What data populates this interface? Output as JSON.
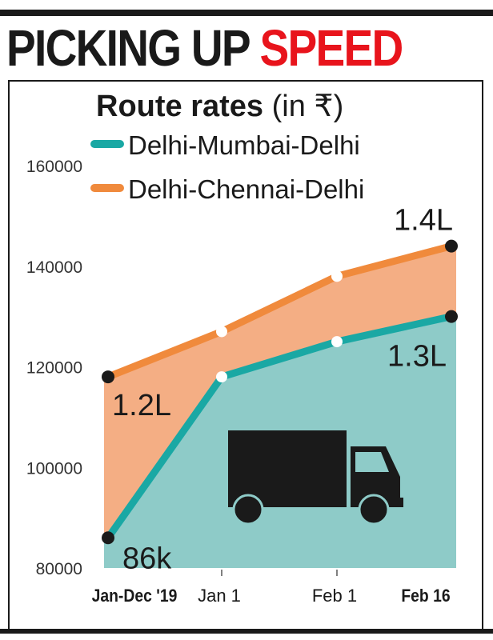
{
  "headline": {
    "part1": "PICKING UP ",
    "part2": "SPEED"
  },
  "chart_data": {
    "type": "area",
    "title": "Route rates (in ₹)",
    "categories": [
      "Jan-Dec '19",
      "Jan 1",
      "Feb 1",
      "Feb 16"
    ],
    "ylim": [
      80000,
      160000
    ],
    "yticks": [
      80000,
      100000,
      120000,
      140000,
      160000
    ],
    "ytick_labels": [
      "80000",
      "100000",
      "120000",
      "140000",
      "160000"
    ],
    "grid": false,
    "legend_position": "top-left",
    "series": [
      {
        "name": "Delhi-Mumbai-Delhi",
        "values": [
          86000,
          118000,
          125000,
          130000
        ],
        "color": "#1aa8a4",
        "fill": "#8ecbc8"
      },
      {
        "name": "Delhi-Chennai-Delhi",
        "values": [
          118000,
          127000,
          138000,
          144000
        ],
        "color": "#f08a3c",
        "fill": "#f4ae84"
      }
    ],
    "annotations": [
      {
        "series": 1,
        "index": 0,
        "text": "1.2L"
      },
      {
        "series": 0,
        "index": 0,
        "text": "86k"
      },
      {
        "series": 1,
        "index": 3,
        "text": "1.4L"
      },
      {
        "series": 0,
        "index": 3,
        "text": "1.3L"
      }
    ]
  },
  "truck_icon": "truck-icon"
}
